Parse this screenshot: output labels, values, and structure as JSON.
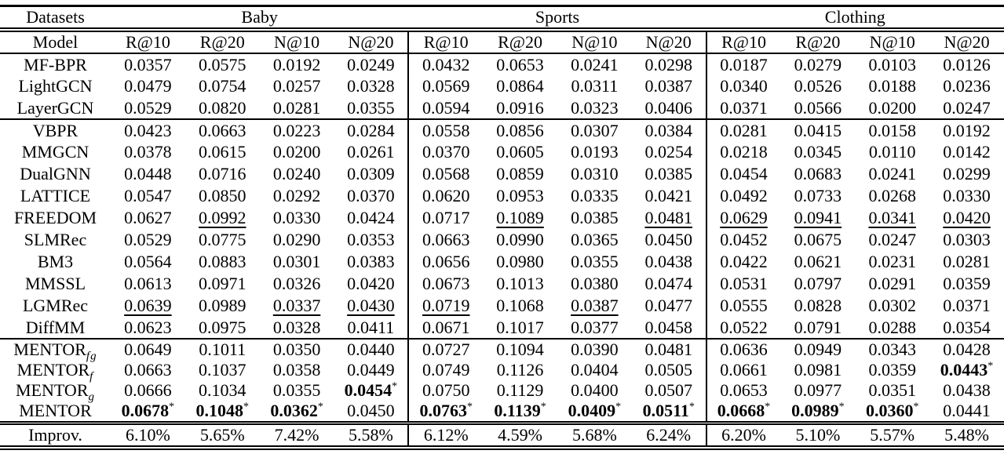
{
  "colors": {
    "text": "#000000",
    "background": "#ffffff",
    "rule": "#000000"
  },
  "table": {
    "corner_label": "Datasets",
    "model_label": "Model",
    "groups": [
      {
        "label": "Baby"
      },
      {
        "label": "Sports"
      },
      {
        "label": "Clothing"
      }
    ],
    "metrics": [
      "R@10",
      "R@20",
      "N@10",
      "N@20"
    ],
    "sections": [
      {
        "name": "cf-baselines",
        "rows": [
          {
            "model": {
              "name": "MF-BPR"
            },
            "cells": [
              "0.0357",
              "0.0575",
              "0.0192",
              "0.0249",
              "0.0432",
              "0.0653",
              "0.0241",
              "0.0298",
              "0.0187",
              "0.0279",
              "0.0103",
              "0.0126"
            ]
          },
          {
            "model": {
              "name": "LightGCN"
            },
            "cells": [
              "0.0479",
              "0.0754",
              "0.0257",
              "0.0328",
              "0.0569",
              "0.0864",
              "0.0311",
              "0.0387",
              "0.0340",
              "0.0526",
              "0.0188",
              "0.0236"
            ]
          },
          {
            "model": {
              "name": "LayerGCN"
            },
            "cells": [
              "0.0529",
              "0.0820",
              "0.0281",
              "0.0355",
              "0.0594",
              "0.0916",
              "0.0323",
              "0.0406",
              "0.0371",
              "0.0566",
              "0.0200",
              "0.0247"
            ]
          }
        ]
      },
      {
        "name": "multimodal-baselines",
        "rows": [
          {
            "model": {
              "name": "VBPR"
            },
            "cells": [
              "0.0423",
              "0.0663",
              "0.0223",
              "0.0284",
              "0.0558",
              "0.0856",
              "0.0307",
              "0.0384",
              "0.0281",
              "0.0415",
              "0.0158",
              "0.0192"
            ]
          },
          {
            "model": {
              "name": "MMGCN"
            },
            "cells": [
              "0.0378",
              "0.0615",
              "0.0200",
              "0.0261",
              "0.0370",
              "0.0605",
              "0.0193",
              "0.0254",
              "0.0218",
              "0.0345",
              "0.0110",
              "0.0142"
            ]
          },
          {
            "model": {
              "name": "DualGNN"
            },
            "cells": [
              "0.0448",
              "0.0716",
              "0.0240",
              "0.0309",
              "0.0568",
              "0.0859",
              "0.0310",
              "0.0385",
              "0.0454",
              "0.0683",
              "0.0241",
              "0.0299"
            ]
          },
          {
            "model": {
              "name": "LATTICE"
            },
            "cells": [
              "0.0547",
              "0.0850",
              "0.0292",
              "0.0370",
              "0.0620",
              "0.0953",
              "0.0335",
              "0.0421",
              "0.0492",
              "0.0733",
              "0.0268",
              "0.0330"
            ]
          },
          {
            "model": {
              "name": "FREEDOM"
            },
            "cells": [
              "0.0627",
              {
                "v": "0.0992",
                "u": true
              },
              "0.0330",
              "0.0424",
              "0.0717",
              {
                "v": "0.1089",
                "u": true
              },
              "0.0385",
              {
                "v": "0.0481",
                "u": true
              },
              {
                "v": "0.0629",
                "u": true
              },
              {
                "v": "0.0941",
                "u": true
              },
              {
                "v": "0.0341",
                "u": true
              },
              {
                "v": "0.0420",
                "u": true
              }
            ]
          },
          {
            "model": {
              "name": "SLMRec"
            },
            "cells": [
              "0.0529",
              "0.0775",
              "0.0290",
              "0.0353",
              "0.0663",
              "0.0990",
              "0.0365",
              "0.0450",
              "0.0452",
              "0.0675",
              "0.0247",
              "0.0303"
            ]
          },
          {
            "model": {
              "name": "BM3"
            },
            "cells": [
              "0.0564",
              "0.0883",
              "0.0301",
              "0.0383",
              "0.0656",
              "0.0980",
              "0.0355",
              "0.0438",
              "0.0422",
              "0.0621",
              "0.0231",
              "0.0281"
            ]
          },
          {
            "model": {
              "name": "MMSSL"
            },
            "cells": [
              "0.0613",
              "0.0971",
              "0.0326",
              "0.0420",
              "0.0673",
              "0.1013",
              "0.0380",
              "0.0474",
              "0.0531",
              "0.0797",
              "0.0291",
              "0.0359"
            ]
          },
          {
            "model": {
              "name": "LGMRec"
            },
            "cells": [
              {
                "v": "0.0639",
                "u": true
              },
              "0.0989",
              {
                "v": "0.0337",
                "u": true
              },
              {
                "v": "0.0430",
                "u": true
              },
              {
                "v": "0.0719",
                "u": true
              },
              "0.1068",
              {
                "v": "0.0387",
                "u": true
              },
              "0.0477",
              "0.0555",
              "0.0828",
              "0.0302",
              "0.0371"
            ]
          },
          {
            "model": {
              "name": "DiffMM"
            },
            "cells": [
              "0.0623",
              "0.0975",
              "0.0328",
              "0.0411",
              "0.0671",
              "0.1017",
              "0.0377",
              "0.0458",
              "0.0522",
              "0.0791",
              "0.0288",
              "0.0354"
            ]
          }
        ]
      },
      {
        "name": "mentor-variants",
        "rows": [
          {
            "model": {
              "name": "MENTOR",
              "sub": "fg"
            },
            "cells": [
              "0.0649",
              "0.1011",
              "0.0350",
              "0.0440",
              "0.0727",
              "0.1094",
              "0.0390",
              "0.0481",
              "0.0636",
              "0.0949",
              "0.0343",
              "0.0428"
            ]
          },
          {
            "model": {
              "name": "MENTOR",
              "sub": "f"
            },
            "cells": [
              "0.0663",
              "0.1037",
              "0.0358",
              "0.0449",
              "0.0749",
              "0.1126",
              "0.0404",
              "0.0505",
              "0.0661",
              "0.0981",
              "0.0359",
              {
                "v": "0.0443",
                "b": true,
                "s": true
              }
            ]
          },
          {
            "model": {
              "name": "MENTOR",
              "sub": "g"
            },
            "cells": [
              "0.0666",
              "0.1034",
              "0.0355",
              {
                "v": "0.0454",
                "b": true,
                "s": true
              },
              "0.0750",
              "0.1129",
              "0.0400",
              "0.0507",
              "0.0653",
              "0.0977",
              "0.0351",
              "0.0438"
            ]
          },
          {
            "model": {
              "name": "MENTOR"
            },
            "cells": [
              {
                "v": "0.0678",
                "b": true,
                "s": true
              },
              {
                "v": "0.1048",
                "b": true,
                "s": true
              },
              {
                "v": "0.0362",
                "b": true,
                "s": true
              },
              "0.0450",
              {
                "v": "0.0763",
                "b": true,
                "s": true
              },
              {
                "v": "0.1139",
                "b": true,
                "s": true
              },
              {
                "v": "0.0409",
                "b": true,
                "s": true
              },
              {
                "v": "0.0511",
                "b": true,
                "s": true
              },
              {
                "v": "0.0668",
                "b": true,
                "s": true
              },
              {
                "v": "0.0989",
                "b": true,
                "s": true
              },
              {
                "v": "0.0360",
                "b": true,
                "s": true
              },
              "0.0441"
            ]
          }
        ]
      }
    ],
    "improv_row": {
      "label": "Improv.",
      "cells": [
        "6.10%",
        "5.65%",
        "7.42%",
        "5.58%",
        "6.12%",
        "4.59%",
        "5.68%",
        "6.24%",
        "6.20%",
        "5.10%",
        "5.57%",
        "5.48%"
      ]
    }
  }
}
